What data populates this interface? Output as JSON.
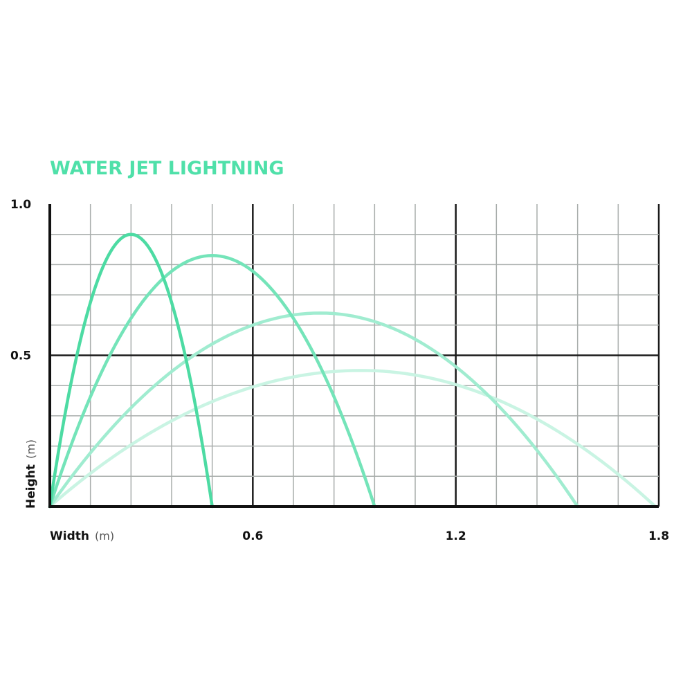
{
  "chart_data": {
    "type": "line",
    "title": "WATER JET LIGHTNING",
    "xlabel": "Width",
    "xlabel_unit": "(m)",
    "ylabel": "Height",
    "ylabel_unit": "(m)",
    "xlim": [
      0,
      1.8
    ],
    "ylim": [
      0,
      1.0
    ],
    "x_ticks": [
      "0.6",
      "1.2",
      "1.8"
    ],
    "y_ticks": [
      "0.5",
      "1.0"
    ],
    "grid": true,
    "series": [
      {
        "color": "#4ddba3",
        "x": [
          0,
          0.24,
          0.48
        ],
        "y": [
          0,
          0.9,
          0
        ]
      },
      {
        "color": "#74e4b9",
        "x": [
          0,
          0.48,
          0.96
        ],
        "y": [
          0,
          0.83,
          0
        ]
      },
      {
        "color": "#a0ecd0",
        "x": [
          0,
          0.8,
          1.56
        ],
        "y": [
          0,
          0.64,
          0
        ]
      },
      {
        "color": "#c9f4e3",
        "x": [
          0,
          0.92,
          1.79
        ],
        "y": [
          0,
          0.45,
          0
        ]
      }
    ]
  }
}
